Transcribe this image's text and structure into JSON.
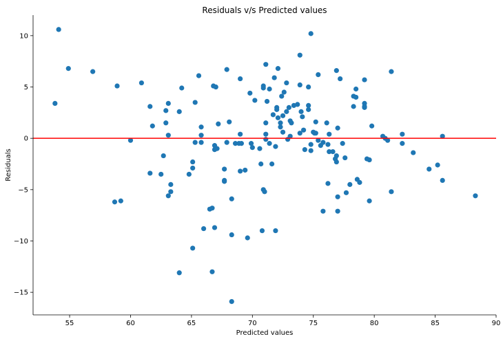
{
  "chart_data": {
    "type": "scatter",
    "title": "Residuals v/s Predicted values",
    "xlabel": "Predicted values",
    "ylabel": "Residuals",
    "xlim": [
      52.0,
      90.0
    ],
    "ylim": [
      -17.2,
      12.0
    ],
    "xticks": [
      55,
      60,
      65,
      70,
      75,
      80,
      85,
      90
    ],
    "yticks": [
      10,
      5,
      0,
      -5,
      -10,
      -15
    ],
    "grid": false,
    "legend": "none",
    "marker_color": "#1f77b4",
    "reference_line": {
      "y": 0,
      "color": "#ff0000"
    },
    "points": [
      [
        53.8,
        3.4
      ],
      [
        54.1,
        10.6
      ],
      [
        54.9,
        6.8
      ],
      [
        56.9,
        6.5
      ],
      [
        58.7,
        -6.2
      ],
      [
        58.9,
        5.1
      ],
      [
        59.2,
        -6.1
      ],
      [
        60.0,
        -0.2
      ],
      [
        60.9,
        5.4
      ],
      [
        61.6,
        3.1
      ],
      [
        61.6,
        -3.4
      ],
      [
        61.8,
        1.2
      ],
      [
        62.5,
        -3.5
      ],
      [
        62.7,
        -1.7
      ],
      [
        62.9,
        1.5
      ],
      [
        62.9,
        2.7
      ],
      [
        63.1,
        3.4
      ],
      [
        63.1,
        -5.6
      ],
      [
        63.1,
        0.3
      ],
      [
        63.3,
        -4.5
      ],
      [
        63.3,
        -5.2
      ],
      [
        64.0,
        2.6
      ],
      [
        64.0,
        -13.1
      ],
      [
        64.2,
        4.9
      ],
      [
        64.8,
        -3.5
      ],
      [
        65.1,
        -2.3
      ],
      [
        65.1,
        -2.9
      ],
      [
        65.1,
        -10.7
      ],
      [
        65.3,
        3.5
      ],
      [
        65.3,
        -0.4
      ],
      [
        65.6,
        6.1
      ],
      [
        65.8,
        1.1
      ],
      [
        65.8,
        0.3
      ],
      [
        65.8,
        -0.4
      ],
      [
        66.0,
        -8.8
      ],
      [
        66.5,
        -6.9
      ],
      [
        66.7,
        -6.8
      ],
      [
        66.7,
        -13.0
      ],
      [
        66.8,
        5.1
      ],
      [
        66.9,
        -0.7
      ],
      [
        66.9,
        -1.1
      ],
      [
        66.9,
        -8.7
      ],
      [
        67.0,
        5.0
      ],
      [
        67.1,
        -1.0
      ],
      [
        67.2,
        1.4
      ],
      [
        67.7,
        -3.0
      ],
      [
        67.7,
        -4.1
      ],
      [
        67.7,
        -4.2
      ],
      [
        67.9,
        6.7
      ],
      [
        67.9,
        -0.4
      ],
      [
        68.1,
        1.6
      ],
      [
        68.3,
        -5.9
      ],
      [
        68.3,
        -9.4
      ],
      [
        68.3,
        -15.9
      ],
      [
        68.6,
        -0.5
      ],
      [
        68.9,
        -0.5
      ],
      [
        69.0,
        5.8
      ],
      [
        69.0,
        0.4
      ],
      [
        69.0,
        -3.2
      ],
      [
        69.1,
        -0.5
      ],
      [
        69.4,
        -3.1
      ],
      [
        69.6,
        -9.7
      ],
      [
        69.8,
        4.4
      ],
      [
        69.9,
        -0.5
      ],
      [
        70.0,
        -0.9
      ],
      [
        70.2,
        3.7
      ],
      [
        70.6,
        -1.0
      ],
      [
        70.7,
        -2.5
      ],
      [
        70.8,
        -9.0
      ],
      [
        70.9,
        5.1
      ],
      [
        70.9,
        4.9
      ],
      [
        70.9,
        -5.0
      ],
      [
        71.0,
        -5.2
      ],
      [
        71.1,
        1.5
      ],
      [
        71.1,
        0.4
      ],
      [
        71.1,
        -0.1
      ],
      [
        71.1,
        7.2
      ],
      [
        71.2,
        3.6
      ],
      [
        71.4,
        -0.5
      ],
      [
        71.4,
        4.8
      ],
      [
        71.6,
        -2.5
      ],
      [
        71.7,
        2.3
      ],
      [
        71.8,
        5.9
      ],
      [
        71.9,
        -0.8
      ],
      [
        71.9,
        -9.0
      ],
      [
        72.0,
        3.0
      ],
      [
        72.0,
        2.8
      ],
      [
        72.1,
        6.8
      ],
      [
        72.1,
        2.0
      ],
      [
        72.3,
        1.5
      ],
      [
        72.3,
        1.1
      ],
      [
        72.4,
        4.1
      ],
      [
        72.5,
        0.6
      ],
      [
        72.5,
        2.2
      ],
      [
        72.6,
        4.5
      ],
      [
        72.8,
        5.4
      ],
      [
        72.8,
        2.6
      ],
      [
        72.9,
        -0.1
      ],
      [
        73.0,
        3.0
      ],
      [
        73.1,
        1.7
      ],
      [
        73.1,
        0.2
      ],
      [
        73.2,
        1.5
      ],
      [
        73.4,
        3.2
      ],
      [
        73.7,
        3.3
      ],
      [
        73.9,
        0.5
      ],
      [
        73.9,
        8.1
      ],
      [
        73.9,
        5.2
      ],
      [
        74.0,
        2.6
      ],
      [
        74.1,
        2.1
      ],
      [
        74.2,
        0.8
      ],
      [
        74.3,
        -1.1
      ],
      [
        74.6,
        2.8
      ],
      [
        74.6,
        3.2
      ],
      [
        74.6,
        5.0
      ],
      [
        74.8,
        10.2
      ],
      [
        74.8,
        -0.6
      ],
      [
        74.8,
        -1.2
      ],
      [
        75.0,
        0.6
      ],
      [
        75.1,
        0.5
      ],
      [
        75.2,
        1.6
      ],
      [
        75.2,
        0.5
      ],
      [
        75.4,
        6.2
      ],
      [
        75.4,
        -0.2
      ],
      [
        75.6,
        -0.7
      ],
      [
        75.8,
        -0.4
      ],
      [
        75.8,
        -7.1
      ],
      [
        76.1,
        1.5
      ],
      [
        76.2,
        -4.4
      ],
      [
        76.2,
        -0.6
      ],
      [
        76.3,
        -1.3
      ],
      [
        76.3,
        0.4
      ],
      [
        76.6,
        -1.3
      ],
      [
        76.8,
        -2.0
      ],
      [
        76.9,
        -2.3
      ],
      [
        76.9,
        -1.7
      ],
      [
        76.9,
        6.6
      ],
      [
        77.0,
        1.0
      ],
      [
        77.0,
        -5.7
      ],
      [
        77.0,
        -7.1
      ],
      [
        77.2,
        5.8
      ],
      [
        77.4,
        -0.5
      ],
      [
        77.6,
        -1.9
      ],
      [
        77.7,
        -5.3
      ],
      [
        78.0,
        -4.5
      ],
      [
        78.3,
        4.1
      ],
      [
        78.3,
        3.1
      ],
      [
        78.5,
        4.8
      ],
      [
        78.5,
        4.0
      ],
      [
        78.6,
        -4.0
      ],
      [
        78.8,
        -4.3
      ],
      [
        79.2,
        5.7
      ],
      [
        79.2,
        3.0
      ],
      [
        79.2,
        3.4
      ],
      [
        79.2,
        3.1
      ],
      [
        79.4,
        -2.0
      ],
      [
        79.6,
        -6.1
      ],
      [
        79.6,
        -2.1
      ],
      [
        79.8,
        1.2
      ],
      [
        80.7,
        0.2
      ],
      [
        80.9,
        0.0
      ],
      [
        81.1,
        -0.2
      ],
      [
        81.4,
        6.5
      ],
      [
        81.4,
        -5.2
      ],
      [
        82.3,
        0.4
      ],
      [
        82.3,
        -0.5
      ],
      [
        83.2,
        -1.4
      ],
      [
        84.5,
        -3.0
      ],
      [
        85.2,
        -2.6
      ],
      [
        85.6,
        0.2
      ],
      [
        85.6,
        -4.1
      ],
      [
        88.3,
        -5.6
      ]
    ]
  }
}
